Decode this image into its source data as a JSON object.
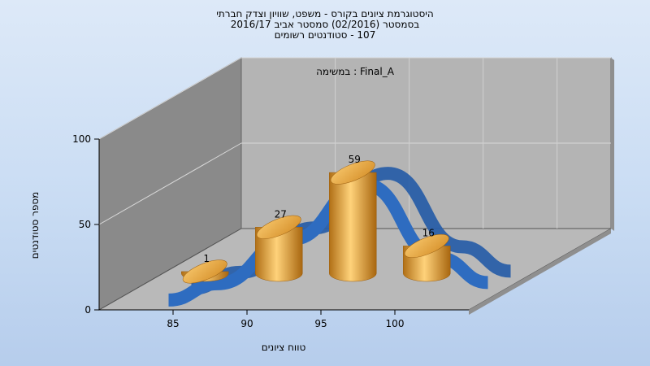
{
  "title_lines": [
    "היסטוגרמת ציונים בקורס - משפט, שוויון וצדק חברתי",
    "בסמסטר  (02/2016)  סמסטר אביב 2016/17",
    "107 - סטודנטים רשומים"
  ],
  "chart_data": {
    "type": "bar",
    "view": "3d",
    "categories": [
      "85",
      "90",
      "95",
      "100"
    ],
    "series": [
      {
        "name": "Final_A : במשימה",
        "values": [
          1,
          27,
          59,
          16
        ],
        "data_labels": [
          "1",
          "27",
          "59",
          "16"
        ]
      }
    ],
    "curve": {
      "type": "line",
      "color": "#2e6cc0",
      "note": "smoothed distribution line drawn behind the bars"
    },
    "annotation": "Final_A : במשימה",
    "xlabel": "טווח ציונים",
    "ylabel": "מספר סטודנטים",
    "ylim": [
      0,
      100
    ],
    "yticks": [
      "0",
      "50",
      "100"
    ],
    "grid": true,
    "colors": {
      "bar": "#e3a137",
      "curve": "#2e6cc0",
      "background": "#c9dcf3"
    }
  }
}
